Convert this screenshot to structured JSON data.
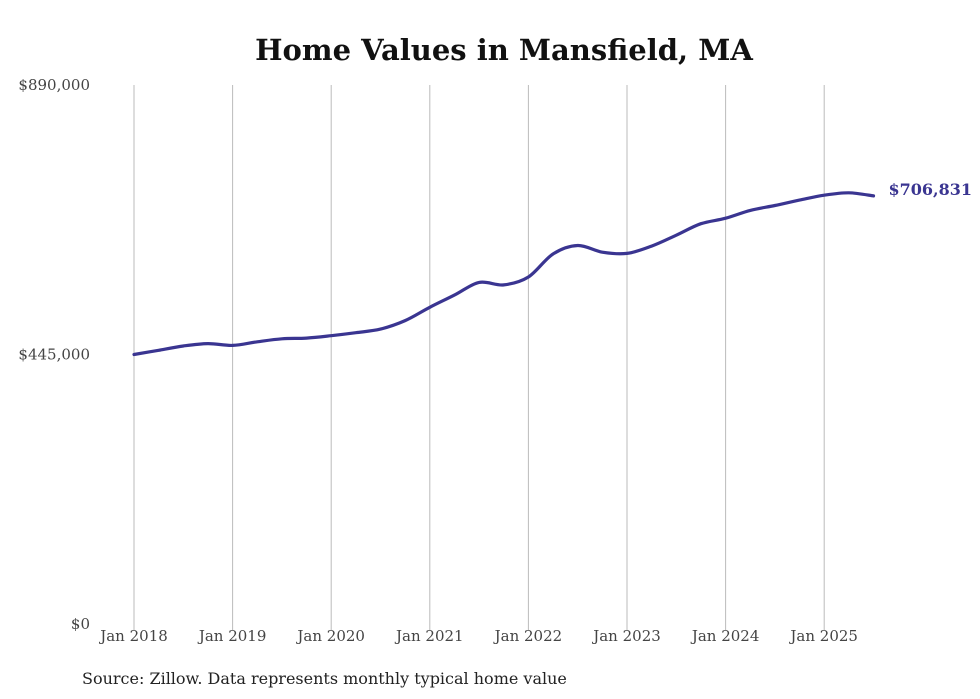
{
  "chart_data": {
    "type": "line",
    "title": "Home Values in Mansfield, MA",
    "xlabel": "",
    "ylabel": "",
    "ylim": [
      0,
      890000
    ],
    "y_ticks": [
      {
        "value": 0,
        "label": "$0"
      },
      {
        "value": 445000,
        "label": "$445,000"
      },
      {
        "value": 890000,
        "label": "$890,000"
      }
    ],
    "x_ticks": [
      "Jan 2018",
      "Jan 2019",
      "Jan 2020",
      "Jan 2021",
      "Jan 2022",
      "Jan 2023",
      "Jan 2024",
      "Jan 2025"
    ],
    "grid": "vertical",
    "series": [
      {
        "color": "#3a3591",
        "end_label": "$706,831",
        "points": [
          {
            "x": "2018-01",
            "y": 445000
          },
          {
            "x": "2018-04",
            "y": 452000
          },
          {
            "x": "2018-07",
            "y": 459000
          },
          {
            "x": "2018-10",
            "y": 463000
          },
          {
            "x": "2019-01",
            "y": 460000
          },
          {
            "x": "2019-04",
            "y": 466000
          },
          {
            "x": "2019-07",
            "y": 471000
          },
          {
            "x": "2019-10",
            "y": 472000
          },
          {
            "x": "2020-01",
            "y": 476000
          },
          {
            "x": "2020-04",
            "y": 481000
          },
          {
            "x": "2020-07",
            "y": 487000
          },
          {
            "x": "2020-10",
            "y": 501000
          },
          {
            "x": "2021-01",
            "y": 523000
          },
          {
            "x": "2021-04",
            "y": 543000
          },
          {
            "x": "2021-07",
            "y": 564000
          },
          {
            "x": "2021-10",
            "y": 560000
          },
          {
            "x": "2022-01",
            "y": 573000
          },
          {
            "x": "2022-04",
            "y": 611000
          },
          {
            "x": "2022-07",
            "y": 625000
          },
          {
            "x": "2022-10",
            "y": 614000
          },
          {
            "x": "2023-01",
            "y": 612000
          },
          {
            "x": "2023-04",
            "y": 624000
          },
          {
            "x": "2023-07",
            "y": 642000
          },
          {
            "x": "2023-10",
            "y": 661000
          },
          {
            "x": "2024-01",
            "y": 670000
          },
          {
            "x": "2024-04",
            "y": 683000
          },
          {
            "x": "2024-07",
            "y": 691000
          },
          {
            "x": "2024-10",
            "y": 700000
          },
          {
            "x": "2025-01",
            "y": 708000
          },
          {
            "x": "2025-04",
            "y": 712000
          },
          {
            "x": "2025-07",
            "y": 706831
          }
        ]
      }
    ]
  },
  "source_note": "Source: Zillow. Data represents monthly typical home value"
}
